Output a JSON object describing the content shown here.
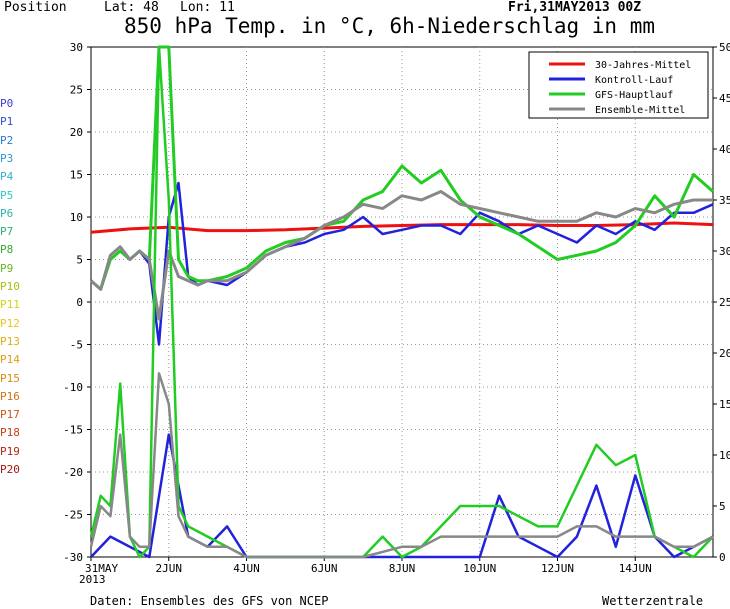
{
  "header": {
    "position_label": "Position",
    "lat_label": "Lat: 48",
    "lon_label": "Lon: 11",
    "date": "Fri,31MAY2013 00Z"
  },
  "footer": {
    "source": "Daten: Ensembles des GFS von NCEP",
    "brand": "Wetterzentrale"
  },
  "members": [
    {
      "label": "P0",
      "color": "#3b3bd0"
    },
    {
      "label": "P1",
      "color": "#2f4fd8"
    },
    {
      "label": "P2",
      "color": "#2f77d8"
    },
    {
      "label": "P3",
      "color": "#2f97d8"
    },
    {
      "label": "P4",
      "color": "#2fb0d0"
    },
    {
      "label": "P5",
      "color": "#2fc8c8"
    },
    {
      "label": "P6",
      "color": "#26b8a8"
    },
    {
      "label": "P7",
      "color": "#30b070"
    },
    {
      "label": "P8",
      "color": "#3aa838"
    },
    {
      "label": "P9",
      "color": "#6ab820"
    },
    {
      "label": "P10",
      "color": "#a8c010"
    },
    {
      "label": "P11",
      "color": "#d8d010"
    },
    {
      "label": "P12",
      "color": "#e8c818"
    },
    {
      "label": "P13",
      "color": "#e0b010"
    },
    {
      "label": "P14",
      "color": "#e0a010"
    },
    {
      "label": "P15",
      "color": "#d88a10"
    },
    {
      "label": "P16",
      "color": "#d07010"
    },
    {
      "label": "P17",
      "color": "#c85818"
    },
    {
      "label": "P18",
      "color": "#c04018"
    },
    {
      "label": "P19",
      "color": "#b02818"
    },
    {
      "label": "P20",
      "color": "#a01810"
    }
  ],
  "chart_data": {
    "type": "line",
    "title": "850 hPa Temp. in °C, 6h-Niederschlag in mm",
    "left_axis": {
      "ylim": [
        -30,
        30
      ],
      "ticks": [
        30,
        25,
        20,
        15,
        10,
        5,
        0,
        -5,
        -10,
        -15,
        -20,
        -25,
        -30
      ]
    },
    "right_axis": {
      "ylim": [
        0,
        50
      ],
      "ticks": [
        50,
        45,
        40,
        35,
        30,
        25,
        20,
        15,
        10,
        5,
        0
      ]
    },
    "x_axis": {
      "range_days": [
        0,
        16
      ],
      "ticks": [
        {
          "day": 0,
          "label": "31MAY"
        },
        {
          "day": 2,
          "label": "2JUN"
        },
        {
          "day": 4,
          "label": "4JUN"
        },
        {
          "day": 6,
          "label": "6JUN"
        },
        {
          "day": 8,
          "label": "8JUN"
        },
        {
          "day": 10,
          "label": "10JUN"
        },
        {
          "day": 12,
          "label": "12JUN"
        },
        {
          "day": 14,
          "label": "14JUN"
        }
      ],
      "year_label": "2013"
    },
    "grid": true,
    "legend": {
      "placement": "top-right",
      "entries": [
        {
          "label": "30-Jahres-Mittel",
          "color": "#ee1111"
        },
        {
          "label": "Kontroll-Lauf",
          "color": "#2222dd"
        },
        {
          "label": "GFS-Hauptlauf",
          "color": "#22cc22"
        },
        {
          "label": "Ensemble-Mittel",
          "color": "#888888"
        }
      ]
    },
    "series": [
      {
        "name": "30-Jahres-Mittel",
        "axis": "left",
        "color": "#ee1111",
        "x": [
          0,
          1,
          2,
          3,
          4,
          5,
          6,
          7,
          8,
          9,
          10,
          11,
          12,
          13,
          14,
          15,
          16
        ],
        "values": [
          8.2,
          8.6,
          8.8,
          8.4,
          8.4,
          8.5,
          8.7,
          8.9,
          9.0,
          9.1,
          9.1,
          9.1,
          9.0,
          9.0,
          9.1,
          9.3,
          9.1
        ]
      },
      {
        "name": "Kontroll-Lauf",
        "axis": "left",
        "color": "#2222dd",
        "x": [
          0,
          0.25,
          0.5,
          0.75,
          1,
          1.25,
          1.5,
          1.75,
          2,
          2.25,
          2.5,
          2.75,
          3,
          3.5,
          4,
          4.5,
          5,
          5.5,
          6,
          6.5,
          7,
          7.5,
          8,
          8.5,
          9,
          9.5,
          10,
          10.5,
          11,
          11.5,
          12,
          12.5,
          13,
          13.5,
          14,
          14.5,
          15,
          15.5,
          16
        ],
        "values": [
          2.5,
          1.5,
          5.5,
          6.5,
          5,
          6,
          4.5,
          -5,
          10,
          14,
          3,
          2,
          2.5,
          2,
          3.5,
          5.5,
          6.5,
          7,
          8,
          8.5,
          10,
          8,
          8.5,
          9,
          9,
          8,
          10.5,
          9.5,
          8,
          9,
          8,
          7,
          9,
          8,
          9.5,
          8.5,
          10.5,
          10.5,
          11.5
        ]
      },
      {
        "name": "GFS-Hauptlauf",
        "axis": "left",
        "color": "#22cc22",
        "x": [
          0,
          0.25,
          0.5,
          0.75,
          1,
          1.25,
          1.5,
          1.75,
          2,
          2.25,
          2.5,
          2.75,
          3,
          3.5,
          4,
          4.5,
          5,
          5.5,
          6,
          6.5,
          7,
          7.5,
          8,
          8.5,
          9,
          9.5,
          10,
          10.5,
          11,
          11.5,
          12,
          12.5,
          13,
          13.5,
          14,
          14.5,
          15,
          15.5,
          16
        ],
        "values": [
          2.5,
          1.5,
          5,
          6,
          5,
          6,
          5,
          30,
          30,
          5,
          3,
          2.5,
          2.5,
          3,
          4,
          6,
          7,
          7.5,
          9,
          9.5,
          12,
          13,
          16,
          14,
          15.5,
          12,
          10,
          9,
          8,
          6.5,
          5,
          5.5,
          6,
          7,
          9,
          12.5,
          10,
          15,
          13
        ]
      },
      {
        "name": "Ensemble-Mittel",
        "axis": "left",
        "color": "#888888",
        "x": [
          0,
          0.25,
          0.5,
          0.75,
          1,
          1.25,
          1.5,
          1.75,
          2,
          2.25,
          2.5,
          2.75,
          3,
          3.5,
          4,
          4.5,
          5,
          5.5,
          6,
          6.5,
          7,
          7.5,
          8,
          8.5,
          9,
          9.5,
          10,
          10.5,
          11,
          11.5,
          12,
          12.5,
          13,
          13.5,
          14,
          14.5,
          15,
          15.5,
          16
        ],
        "values": [
          2.5,
          1.5,
          5.5,
          6.5,
          5,
          6,
          5,
          -2,
          6,
          3,
          2.5,
          2,
          2.5,
          2.5,
          3.5,
          5.5,
          6.5,
          7.5,
          9,
          10,
          11.5,
          11,
          12.5,
          12,
          13,
          11.5,
          11,
          10.5,
          10,
          9.5,
          9.5,
          9.5,
          10.5,
          10,
          11,
          10.5,
          11.5,
          12,
          12
        ]
      },
      {
        "name": "Niederschlag Kontroll-Lauf",
        "axis": "right",
        "color": "#2222dd",
        "x": [
          0,
          0.5,
          1,
          1.5,
          2,
          2.5,
          3,
          3.5,
          4,
          5,
          6,
          7,
          8,
          9,
          10,
          10.5,
          11,
          11.5,
          12,
          12.5,
          13,
          13.5,
          14,
          14.5,
          15,
          15.5,
          16
        ],
        "values": [
          0,
          2,
          1,
          0,
          12,
          2,
          1,
          3,
          0,
          0,
          0,
          0,
          0,
          0,
          0,
          6,
          2,
          1,
          0,
          2,
          7,
          1,
          8,
          2,
          0,
          1,
          2
        ]
      },
      {
        "name": "Niederschlag GFS-Hauptlauf",
        "axis": "right",
        "color": "#22cc22",
        "x": [
          0,
          0.25,
          0.5,
          0.75,
          1,
          1.25,
          1.5,
          1.75,
          2,
          2.25,
          2.5,
          3,
          3.5,
          4,
          5,
          6,
          6.5,
          7,
          7.5,
          8,
          8.5,
          9,
          9.5,
          10,
          10.5,
          11,
          11.5,
          12,
          12.5,
          13,
          13.5,
          14,
          14.5,
          15,
          15.5,
          16
        ],
        "values": [
          2,
          6,
          5,
          17,
          2,
          0,
          1,
          50,
          35,
          5,
          3,
          2,
          1,
          0,
          0,
          0,
          0,
          0,
          2,
          0,
          1,
          3,
          5,
          5,
          5,
          4,
          3,
          3,
          7,
          11,
          9,
          10,
          2,
          1,
          0,
          2
        ]
      },
      {
        "name": "Niederschlag Ensemble-Mittel",
        "axis": "right",
        "color": "#888888",
        "x": [
          0,
          0.25,
          0.5,
          0.75,
          1,
          1.25,
          1.5,
          1.75,
          2,
          2.25,
          2.5,
          3,
          3.5,
          4,
          5,
          6,
          7,
          8,
          8.5,
          9,
          9.5,
          10,
          10.5,
          11,
          11.5,
          12,
          12.5,
          13,
          13.5,
          14,
          14.5,
          15,
          15.5,
          16
        ],
        "values": [
          1,
          5,
          4,
          12,
          2,
          1,
          1,
          18,
          15,
          4,
          2,
          1,
          1,
          0,
          0,
          0,
          0,
          1,
          1,
          2,
          2,
          2,
          2,
          2,
          2,
          2,
          3,
          3,
          2,
          2,
          2,
          1,
          1,
          2
        ]
      }
    ]
  }
}
